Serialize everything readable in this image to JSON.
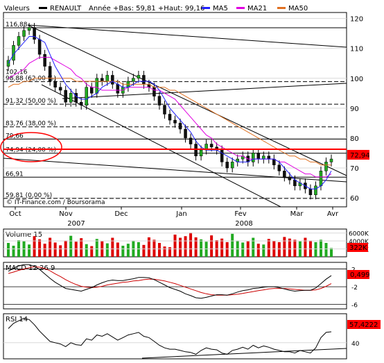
{
  "header": {
    "label_values": "Valeurs",
    "label_stock": "RENAULT",
    "label_range": "Année +Bas: 59,81 +Haut: 99,16",
    "ma5_label": "MA5",
    "ma21_label": "MA21",
    "ma50_label": "MA50",
    "ma5_color": "#1f1fff",
    "ma21_color": "#e000e0",
    "ma50_color": "#e07020"
  },
  "watermark": "© IT-Finance.com / Boursorama",
  "price_axis": {
    "ticks": [
      "120",
      "110",
      "100",
      "90",
      "80",
      "70",
      "60"
    ],
    "min": 57,
    "max": 122
  },
  "fib_levels": [
    {
      "label": "116,88",
      "value": 116.88
    },
    {
      "label": "98,88 (62,00 %)",
      "value": 98.88
    },
    {
      "label": "91,32 (50,00 %)",
      "value": 91.32
    },
    {
      "label": "83,76 (38,00 %)",
      "value": 83.76
    },
    {
      "label": "79,66",
      "value": 79.66
    },
    {
      "label": "74,94 (24,00 %)",
      "value": 74.94
    },
    {
      "label": "66,91",
      "value": 66.91
    },
    {
      "label": "59,81 (0,00 %)",
      "value": 59.81
    }
  ],
  "extra_label": {
    "label": "102,16",
    "value": 102.16
  },
  "last_price": "72,94",
  "months": [
    "Oct",
    "Nov",
    "Dec",
    "Jan",
    "Fev",
    "Mar",
    "Avr"
  ],
  "years": [
    "2007",
    "2008"
  ],
  "volume": {
    "title": "Volume 15",
    "ticks": [
      "6000K",
      "4000K",
      "2000K"
    ],
    "last": "322K"
  },
  "macd": {
    "title": "MACD 12 26 9",
    "ticks": [
      "2",
      "-2",
      "-6"
    ],
    "last": "0,499"
  },
  "rsi": {
    "title": "RSI 14",
    "ticks": [
      "40"
    ],
    "last": "57,4222"
  },
  "chart_data": {
    "type": "candlestick",
    "x": [
      "2007-10-01",
      "2007-10-03",
      "2007-10-05",
      "2007-10-09",
      "2007-10-11",
      "2007-10-15",
      "2007-10-17",
      "2007-10-19",
      "2007-10-23",
      "2007-10-25",
      "2007-10-29",
      "2007-10-31",
      "2007-11-02",
      "2007-11-06",
      "2007-11-08",
      "2007-11-12",
      "2007-11-14",
      "2007-11-16",
      "2007-11-20",
      "2007-11-22",
      "2007-11-26",
      "2007-11-28",
      "2007-11-30",
      "2007-12-04",
      "2007-12-06",
      "2007-12-10",
      "2007-12-12",
      "2007-12-14",
      "2007-12-18",
      "2007-12-20",
      "2007-12-24",
      "2007-12-28",
      "2008-01-02",
      "2008-01-04",
      "2008-01-08",
      "2008-01-10",
      "2008-01-14",
      "2008-01-16",
      "2008-01-18",
      "2008-01-22",
      "2008-01-24",
      "2008-01-28",
      "2008-01-30",
      "2008-02-01",
      "2008-02-05",
      "2008-02-07",
      "2008-02-11",
      "2008-02-13",
      "2008-02-15",
      "2008-02-19",
      "2008-02-21",
      "2008-02-25",
      "2008-02-27",
      "2008-02-29",
      "2008-03-04",
      "2008-03-06",
      "2008-03-10",
      "2008-03-12",
      "2008-03-14",
      "2008-03-18",
      "2008-03-20",
      "2008-03-25",
      "2008-03-27"
    ],
    "close": [
      106,
      111,
      114,
      116,
      117,
      113,
      108,
      104,
      99,
      97,
      96,
      92,
      95,
      92,
      91,
      97,
      95,
      100,
      99,
      101,
      98,
      95,
      97,
      99,
      100,
      101,
      98,
      97,
      94,
      91,
      88,
      86,
      85,
      83,
      80,
      78,
      74,
      76,
      78,
      77,
      76,
      72,
      70,
      72,
      73,
      74,
      72,
      75,
      73,
      74,
      73,
      71,
      69,
      67,
      66,
      64,
      65,
      63,
      61,
      64,
      69,
      72,
      73
    ],
    "ma5": [
      105,
      108,
      110,
      112,
      114,
      114,
      113,
      112,
      108,
      104,
      101,
      98,
      96,
      94,
      93,
      93,
      94,
      95,
      97,
      98,
      99,
      98,
      97,
      97,
      98,
      99,
      99,
      99,
      98,
      96,
      93,
      90,
      88,
      86,
      84,
      82,
      79,
      77,
      76,
      76,
      76,
      75,
      74,
      73,
      72,
      72,
      72,
      73,
      73,
      73,
      73,
      73,
      72,
      70,
      68,
      66,
      65,
      64,
      63,
      63,
      64,
      66,
      69
    ],
    "ma21": [
      100,
      101,
      102,
      103,
      105,
      106,
      107,
      107,
      107,
      106,
      105,
      104,
      103,
      101,
      100,
      98,
      97,
      97,
      96,
      96,
      96,
      96,
      96,
      97,
      97,
      97,
      97,
      97,
      96,
      96,
      95,
      94,
      93,
      91,
      89,
      87,
      85,
      83,
      81,
      80,
      78,
      77,
      76,
      75,
      74,
      74,
      73,
      73,
      73,
      73,
      73,
      73,
      72,
      72,
      71,
      70,
      69,
      68,
      68,
      67,
      67,
      67,
      68
    ],
    "ma50": [
      97,
      98,
      98,
      99,
      99,
      100,
      100,
      100,
      100,
      100,
      100,
      100,
      100,
      99,
      99,
      99,
      99,
      99,
      99,
      99,
      99,
      99,
      98,
      98,
      98,
      98,
      98,
      98,
      97,
      97,
      97,
      96,
      96,
      95,
      94,
      93,
      92,
      91,
      90,
      89,
      88,
      87,
      86,
      85,
      84,
      83,
      82,
      81,
      80,
      79,
      78,
      77,
      76,
      75,
      74,
      74,
      73,
      73,
      72,
      72,
      71,
      71,
      71
    ],
    "volume": [
      3500,
      2800,
      4200,
      3900,
      3100,
      5200,
      4400,
      3300,
      4800,
      3600,
      2900,
      4100,
      5300,
      3800,
      4700,
      3200,
      2700,
      4500,
      3900,
      3400,
      4800,
      3600,
      2800,
      3300,
      4100,
      3700,
      3000,
      4900,
      4300,
      3500,
      2600,
      2400,
      5600,
      4800,
      5200,
      6100,
      4900,
      4400,
      3800,
      5400,
      4200,
      4600,
      3700,
      5800,
      4100,
      3600,
      3900,
      4800,
      3300,
      3100,
      4500,
      4000,
      3700,
      5000,
      4600,
      4300,
      3900,
      4800,
      4100,
      3700,
      4300,
      3500,
      2200
    ],
    "macd": [
      1.5,
      2.2,
      2.7,
      3.0,
      3.0,
      2.6,
      1.9,
      0.9,
      -0.1,
      -1.0,
      -1.7,
      -2.4,
      -2.6,
      -2.8,
      -3.0,
      -2.6,
      -2.2,
      -1.6,
      -1.1,
      -0.7,
      -0.5,
      -0.6,
      -0.6,
      -0.4,
      -0.2,
      0.1,
      0.1,
      0.0,
      -0.4,
      -1.0,
      -1.6,
      -2.2,
      -2.6,
      -3.0,
      -3.6,
      -4.0,
      -4.5,
      -4.6,
      -4.4,
      -4.1,
      -3.8,
      -3.8,
      -3.9,
      -3.6,
      -3.2,
      -2.9,
      -2.7,
      -2.4,
      -2.3,
      -2.1,
      -2.0,
      -2.0,
      -2.2,
      -2.5,
      -2.8,
      -3.0,
      -2.9,
      -2.8,
      -2.8,
      -2.3,
      -1.3,
      -0.3,
      0.5
    ],
    "signal": [
      1.0,
      1.3,
      1.7,
      2.0,
      2.3,
      2.5,
      2.4,
      2.1,
      1.6,
      0.9,
      0.3,
      -0.4,
      -1.0,
      -1.5,
      -1.9,
      -2.1,
      -2.2,
      -2.1,
      -1.9,
      -1.6,
      -1.4,
      -1.2,
      -1.0,
      -0.9,
      -0.7,
      -0.6,
      -0.4,
      -0.3,
      -0.3,
      -0.5,
      -0.7,
      -1.0,
      -1.3,
      -1.7,
      -2.1,
      -2.5,
      -2.9,
      -3.3,
      -3.6,
      -3.8,
      -3.9,
      -3.9,
      -3.9,
      -3.8,
      -3.7,
      -3.5,
      -3.3,
      -3.1,
      -2.9,
      -2.7,
      -2.5,
      -2.4,
      -2.4,
      -2.4,
      -2.5,
      -2.6,
      -2.7,
      -2.8,
      -2.8,
      -2.7,
      -2.4,
      -1.9,
      -1.3
    ],
    "rsi": [
      62,
      70,
      74,
      78,
      76,
      68,
      58,
      50,
      42,
      40,
      38,
      34,
      40,
      37,
      36,
      46,
      44,
      52,
      50,
      54,
      49,
      44,
      48,
      52,
      54,
      56,
      50,
      48,
      42,
      36,
      32,
      30,
      30,
      28,
      26,
      25,
      22,
      28,
      32,
      30,
      29,
      24,
      22,
      28,
      30,
      33,
      30,
      36,
      32,
      35,
      33,
      30,
      28,
      26,
      26,
      24,
      28,
      26,
      24,
      32,
      48,
      56,
      57
    ]
  }
}
